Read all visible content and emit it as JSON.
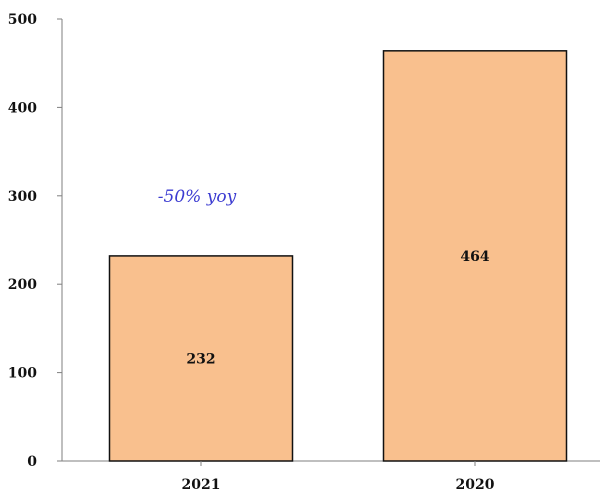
{
  "chart_data": {
    "type": "bar",
    "categories": [
      "2021",
      "2020"
    ],
    "values": [
      232,
      464
    ],
    "data_labels": [
      "232",
      "464"
    ],
    "title": "",
    "xlabel": "",
    "ylabel": "",
    "ylim": [
      0,
      500
    ],
    "yticks": [
      0,
      100,
      200,
      300,
      400,
      500
    ],
    "grid": false,
    "legend": "none",
    "annotations": [
      {
        "text": "-50% yoy",
        "category": "2021",
        "y": 300,
        "color": "#3b3bd1"
      }
    ],
    "colors": {
      "bar_fill": "#f9c08e",
      "bar_stroke": "#111111",
      "axis": "#7f7f7f"
    }
  }
}
